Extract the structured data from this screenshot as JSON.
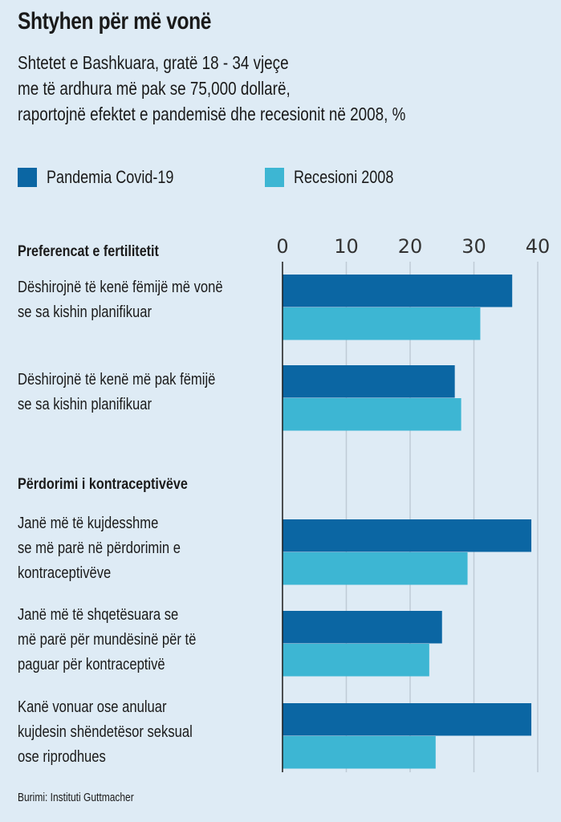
{
  "chart_data": {
    "type": "bar",
    "orientation": "horizontal",
    "title": "Shtyhen për më vonë",
    "subtitle": [
      "Shtetet e Bashkuara, gratë 18 - 34 vjeçe",
      "me të ardhura më pak se 75,000 dollarë,",
      "raportojnë efektet e pandemisë dhe recesionit në 2008, %"
    ],
    "xlabel": "",
    "ylabel": "",
    "xlim": [
      0,
      40
    ],
    "xticks": [
      0,
      10,
      20,
      30,
      40
    ],
    "xtick_labels": [
      "0",
      "10",
      "20",
      "30",
      "40"
    ],
    "axis_position": "top",
    "grid": true,
    "legend_position": "top-left",
    "groups": [
      {
        "header": "Preferencat e fertilitetit",
        "category_indices": [
          0,
          1
        ]
      },
      {
        "header": "Përdorimi i kontraceptivëve",
        "category_indices": [
          2,
          3,
          4
        ]
      }
    ],
    "categories": [
      "Dëshirojnë të kenë fëmijë më vonë\nse sa kishin planifikuar",
      "Dëshirojnë të kenë më pak fëmijë\nse sa kishin planifikuar",
      "Janë më të kujdesshme\nse më parë në përdorimin e\nkontraceptivëve",
      "Janë më të shqetësuara se\nmë parë për mundësinë për të\npaguar për kontraceptivë",
      "Kanë vonuar ose anuluar\nkujdesin shëndetësor seksual\nose riprodhues"
    ],
    "series": [
      {
        "name": "Pandemia Covid-19",
        "color": "#0b66a3",
        "values": [
          36,
          27,
          39,
          25,
          39
        ]
      },
      {
        "name": "Recesioni 2008",
        "color": "#3db6d3",
        "values": [
          31,
          28,
          29,
          23,
          24
        ]
      }
    ],
    "source": "Burimi: Instituti Guttmacher"
  }
}
